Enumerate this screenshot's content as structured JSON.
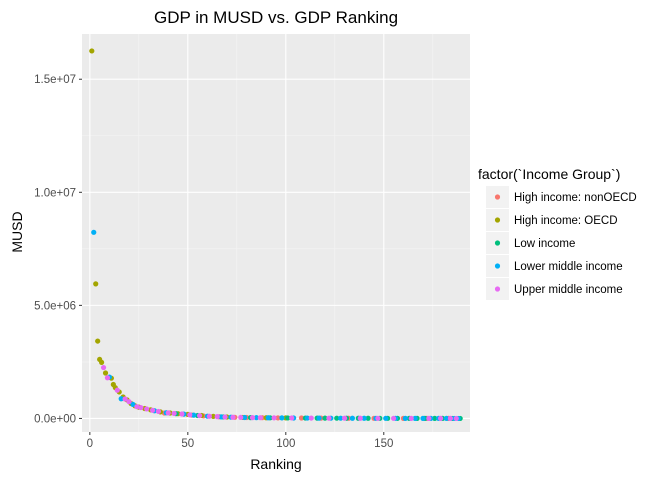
{
  "chart_data": {
    "type": "scatter",
    "title": "GDP in MUSD vs. GDP Ranking",
    "xlabel": "Ranking",
    "ylabel": "MUSD",
    "xlim": [
      -4,
      194
    ],
    "ylim": [
      -600000,
      17000000
    ],
    "x_ticks": [
      {
        "value": 0,
        "label": "0"
      },
      {
        "value": 50,
        "label": "50"
      },
      {
        "value": 100,
        "label": "100"
      },
      {
        "value": 150,
        "label": "150"
      }
    ],
    "y_ticks": [
      {
        "value": 0,
        "label": "0.0e+00"
      },
      {
        "value": 5000000,
        "label": "5.0e+06"
      },
      {
        "value": 10000000,
        "label": "1.0e+07"
      },
      {
        "value": 15000000,
        "label": "1.5e+07"
      }
    ],
    "grid": true,
    "legend": {
      "title": "factor(`Income Group`)",
      "position": "right"
    },
    "series": [
      {
        "name": "High income: nonOECD",
        "color": "#F8766D",
        "points": [
          [
            38,
            240000
          ],
          [
            52,
            150000
          ],
          [
            58,
            110000
          ],
          [
            66,
            75000
          ],
          [
            74,
            50000
          ],
          [
            80,
            40000
          ],
          [
            88,
            32000
          ],
          [
            96,
            25000
          ],
          [
            108,
            18000
          ],
          [
            118,
            13000
          ],
          [
            132,
            9000
          ],
          [
            145,
            6000
          ],
          [
            160,
            3500
          ],
          [
            172,
            2000
          ],
          [
            183,
            900
          ]
        ]
      },
      {
        "name": "High income: OECD",
        "color": "#A3A500",
        "points": [
          [
            1,
            16250000
          ],
          [
            3,
            5950000
          ],
          [
            4,
            3420000
          ],
          [
            5,
            2610000
          ],
          [
            6,
            2480000
          ],
          [
            8,
            2010000
          ],
          [
            11,
            1780000
          ],
          [
            12,
            1500000
          ],
          [
            13,
            1360000
          ],
          [
            15,
            1170000
          ],
          [
            17,
            950000
          ],
          [
            19,
            820000
          ],
          [
            21,
            660000
          ],
          [
            23,
            560000
          ],
          [
            25,
            500000
          ],
          [
            28,
            440000
          ],
          [
            31,
            380000
          ],
          [
            36,
            290000
          ],
          [
            41,
            240000
          ],
          [
            45,
            210000
          ],
          [
            50,
            180000
          ],
          [
            57,
            130000
          ],
          [
            63,
            90000
          ],
          [
            70,
            62000
          ],
          [
            78,
            44000
          ],
          [
            90,
            30000
          ],
          [
            100,
            24000
          ]
        ]
      },
      {
        "name": "Low income",
        "color": "#00BF7D",
        "points": [
          [
            44,
            210000
          ],
          [
            55,
            130000
          ],
          [
            68,
            65000
          ],
          [
            82,
            36000
          ],
          [
            92,
            27000
          ],
          [
            101,
            22000
          ],
          [
            110,
            16000
          ],
          [
            116,
            14000
          ],
          [
            120,
            12000
          ],
          [
            126,
            10500
          ],
          [
            131,
            9500
          ],
          [
            137,
            8300
          ],
          [
            142,
            7000
          ],
          [
            148,
            5600
          ],
          [
            152,
            4900
          ],
          [
            157,
            4100
          ],
          [
            163,
            3100
          ],
          [
            167,
            2600
          ],
          [
            171,
            2100
          ],
          [
            176,
            1500
          ],
          [
            180,
            1100
          ],
          [
            185,
            700
          ],
          [
            189,
            300
          ]
        ]
      },
      {
        "name": "Lower middle income",
        "color": "#00B0F6",
        "points": [
          [
            2,
            8230000
          ],
          [
            10,
            1830000
          ],
          [
            16,
            870000
          ],
          [
            22,
            620000
          ],
          [
            33,
            340000
          ],
          [
            39,
            250000
          ],
          [
            48,
            190000
          ],
          [
            53,
            145000
          ],
          [
            60,
            100000
          ],
          [
            67,
            70000
          ],
          [
            72,
            56000
          ],
          [
            79,
            42000
          ],
          [
            85,
            34000
          ],
          [
            91,
            29000
          ],
          [
            98,
            24500
          ],
          [
            104,
            20000
          ],
          [
            111,
            16000
          ],
          [
            117,
            13500
          ],
          [
            123,
            11200
          ],
          [
            128,
            10000
          ],
          [
            134,
            8800
          ],
          [
            140,
            7500
          ],
          [
            146,
            6000
          ],
          [
            151,
            5100
          ],
          [
            156,
            4300
          ],
          [
            161,
            3300
          ],
          [
            166,
            2800
          ],
          [
            170,
            2300
          ],
          [
            174,
            1800
          ],
          [
            178,
            1300
          ],
          [
            182,
            1000
          ],
          [
            186,
            500
          ],
          [
            188,
            350
          ]
        ]
      },
      {
        "name": "Upper middle income",
        "color": "#E76BF3",
        "points": [
          [
            7,
            2250000
          ],
          [
            9,
            1800000
          ],
          [
            14,
            1250000
          ],
          [
            18,
            860000
          ],
          [
            20,
            740000
          ],
          [
            24,
            520000
          ],
          [
            26,
            480000
          ],
          [
            29,
            420000
          ],
          [
            32,
            360000
          ],
          [
            35,
            310000
          ],
          [
            40,
            245000
          ],
          [
            43,
            220000
          ],
          [
            47,
            195000
          ],
          [
            51,
            160000
          ],
          [
            56,
            125000
          ],
          [
            61,
            95000
          ],
          [
            65,
            80000
          ],
          [
            69,
            63000
          ],
          [
            73,
            52000
          ],
          [
            77,
            45000
          ],
          [
            83,
            35000
          ],
          [
            87,
            33000
          ],
          [
            94,
            26000
          ],
          [
            103,
            21000
          ],
          [
            113,
            15000
          ],
          [
            122,
            11600
          ],
          [
            130,
            9600
          ],
          [
            138,
            8000
          ],
          [
            147,
            5800
          ],
          [
            155,
            4500
          ],
          [
            164,
            3000
          ],
          [
            173,
            1900
          ],
          [
            179,
            1200
          ],
          [
            184,
            800
          ],
          [
            187,
            400
          ]
        ]
      }
    ]
  }
}
